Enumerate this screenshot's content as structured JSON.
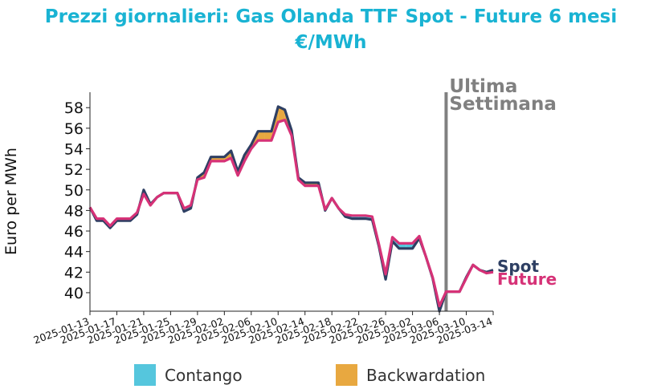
{
  "chart_data": {
    "type": "line",
    "title_line1": "Prezzi giornalieri: Gas Olanda TTF Spot - Future 6 mesi",
    "title_line2": "€/MWh",
    "title_color": "#19b3d3",
    "ylabel": "Euro per MWh",
    "ylim": [
      38.2,
      59.5
    ],
    "yticks": [
      40,
      42,
      44,
      46,
      48,
      50,
      52,
      54,
      56,
      58
    ],
    "xlim": [
      "2025-01-13",
      "2025-03-14"
    ],
    "xticks": [
      "2025-01-13",
      "2025-01-17",
      "2025-01-21",
      "2025-01-25",
      "2025-01-29",
      "2025-02-02",
      "2025-02-06",
      "2025-02-10",
      "2025-02-14",
      "2025-02-18",
      "2025-02-22",
      "2025-02-26",
      "2025-03-02",
      "2025-03-06",
      "2025-03-10",
      "2025-03-14"
    ],
    "dates": [
      "2025-01-13",
      "2025-01-14",
      "2025-01-15",
      "2025-01-16",
      "2025-01-17",
      "2025-01-18",
      "2025-01-19",
      "2025-01-20",
      "2025-01-21",
      "2025-01-22",
      "2025-01-23",
      "2025-01-24",
      "2025-01-25",
      "2025-01-26",
      "2025-01-27",
      "2025-01-28",
      "2025-01-29",
      "2025-01-30",
      "2025-01-31",
      "2025-02-01",
      "2025-02-02",
      "2025-02-03",
      "2025-02-04",
      "2025-02-05",
      "2025-02-06",
      "2025-02-07",
      "2025-02-08",
      "2025-02-09",
      "2025-02-10",
      "2025-02-11",
      "2025-02-12",
      "2025-02-13",
      "2025-02-14",
      "2025-02-15",
      "2025-02-16",
      "2025-02-17",
      "2025-02-18",
      "2025-02-19",
      "2025-02-20",
      "2025-02-21",
      "2025-02-22",
      "2025-02-23",
      "2025-02-24",
      "2025-02-25",
      "2025-02-26",
      "2025-02-27",
      "2025-02-28",
      "2025-03-01",
      "2025-03-02",
      "2025-03-03",
      "2025-03-04",
      "2025-03-05",
      "2025-03-06",
      "2025-03-07",
      "2025-03-08",
      "2025-03-09",
      "2025-03-10",
      "2025-03-11",
      "2025-03-12",
      "2025-03-13",
      "2025-03-14"
    ],
    "series": [
      {
        "name": "Spot",
        "color": "#2e3f63",
        "values": [
          48.3,
          47.0,
          47.0,
          46.3,
          47.0,
          47.0,
          47.0,
          47.6,
          50.0,
          48.6,
          49.3,
          49.7,
          49.7,
          49.7,
          47.9,
          48.2,
          51.2,
          51.7,
          53.2,
          53.2,
          53.2,
          53.8,
          51.8,
          53.4,
          54.4,
          55.7,
          55.7,
          55.7,
          58.1,
          57.8,
          55.8,
          51.2,
          50.7,
          50.7,
          50.7,
          48.0,
          49.2,
          48.2,
          47.4,
          47.2,
          47.2,
          47.2,
          47.1,
          44.5,
          41.3,
          45.0,
          44.3,
          44.3,
          44.3,
          45.3,
          43.5,
          41.4,
          38.2,
          40.1,
          40.1,
          40.1,
          41.5,
          42.7,
          42.2,
          42.0,
          42.2
        ]
      },
      {
        "name": "Future",
        "color": "#d63277",
        "values": [
          48.3,
          47.2,
          47.2,
          46.5,
          47.2,
          47.2,
          47.2,
          47.8,
          49.6,
          48.5,
          49.3,
          49.7,
          49.7,
          49.7,
          48.2,
          48.5,
          51.0,
          51.2,
          52.8,
          52.8,
          52.8,
          53.1,
          51.4,
          52.8,
          54.0,
          54.8,
          54.8,
          54.8,
          56.6,
          56.8,
          55.3,
          51.0,
          50.4,
          50.4,
          50.4,
          48.1,
          49.2,
          48.2,
          47.6,
          47.5,
          47.5,
          47.5,
          47.4,
          44.7,
          41.8,
          45.4,
          44.8,
          44.8,
          44.8,
          45.5,
          43.5,
          41.5,
          38.7,
          40.1,
          40.1,
          40.1,
          41.4,
          42.7,
          42.2,
          41.9,
          42.0
        ]
      }
    ],
    "fill_colors": {
      "contango": "#55c6dd",
      "backwardation": "#e8a840"
    },
    "legend": [
      {
        "label": "Contango",
        "color": "#55c6dd"
      },
      {
        "label": "Backwardation",
        "color": "#e8a840"
      }
    ],
    "annotation": {
      "date": "2025-03-07",
      "line1": "Ultima",
      "line2": "Settimana",
      "color": "#808080"
    },
    "grid": false
  }
}
